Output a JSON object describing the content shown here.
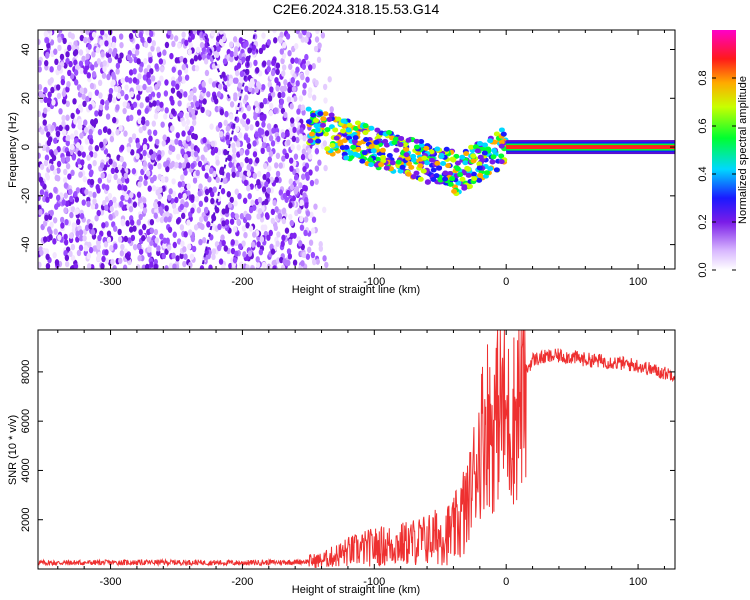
{
  "figure": {
    "title": "C2E6.2024.318.15.53.G14"
  },
  "chart_data": [
    {
      "type": "heatmap",
      "name": "spectrogram",
      "xlabel": "Height of straight line (km)",
      "ylabel": "Frequency (Hz)",
      "xlim": [
        -355,
        128
      ],
      "ylim": [
        -50,
        48
      ],
      "xticks": [
        -300,
        -200,
        -100,
        0,
        100
      ],
      "yticks": [
        -40,
        -20,
        0,
        20,
        40
      ],
      "colorbar": {
        "label": "Normalized spectral amplitude",
        "range": [
          0,
          1
        ],
        "ticks": [
          0.0,
          0.2,
          0.4,
          0.6,
          0.8
        ]
      },
      "features": [
        {
          "region": "noise",
          "x_range": [
            -355,
            -140
          ],
          "description_level": 0.15
        },
        {
          "region": "scintillation",
          "x_range": [
            -150,
            0
          ],
          "center_freq": [
            8,
            -12
          ],
          "level": 0.5
        },
        {
          "region": "carrier",
          "x_range": [
            0,
            128
          ],
          "center_freq": 0,
          "level": 1.0
        }
      ]
    },
    {
      "type": "line",
      "name": "snr",
      "xlabel": "Height of straight line (km)",
      "ylabel": "SNR (10 * v/v)",
      "xlim": [
        -355,
        128
      ],
      "ylim": [
        0,
        9700
      ],
      "xticks": [
        -300,
        -200,
        -100,
        0,
        100
      ],
      "yticks": [
        2000,
        4000,
        6000,
        8000
      ],
      "color": "#ee3030",
      "series": [
        {
          "name": "SNR",
          "x": [
            -355,
            -300,
            -250,
            -200,
            -160,
            -140,
            -120,
            -100,
            -80,
            -60,
            -40,
            -30,
            -20,
            -15,
            -10,
            -5,
            0,
            5,
            10,
            15,
            20,
            30,
            40,
            50,
            60,
            80,
            100,
            110,
            120,
            128
          ],
          "values": [
            250,
            260,
            270,
            250,
            280,
            350,
            700,
            900,
            1000,
            1200,
            1500,
            2500,
            5000,
            6200,
            5500,
            7000,
            6000,
            6000,
            7000,
            8000,
            8500,
            8600,
            8650,
            8600,
            8500,
            8400,
            8250,
            8100,
            7950,
            7900
          ]
        }
      ]
    }
  ]
}
